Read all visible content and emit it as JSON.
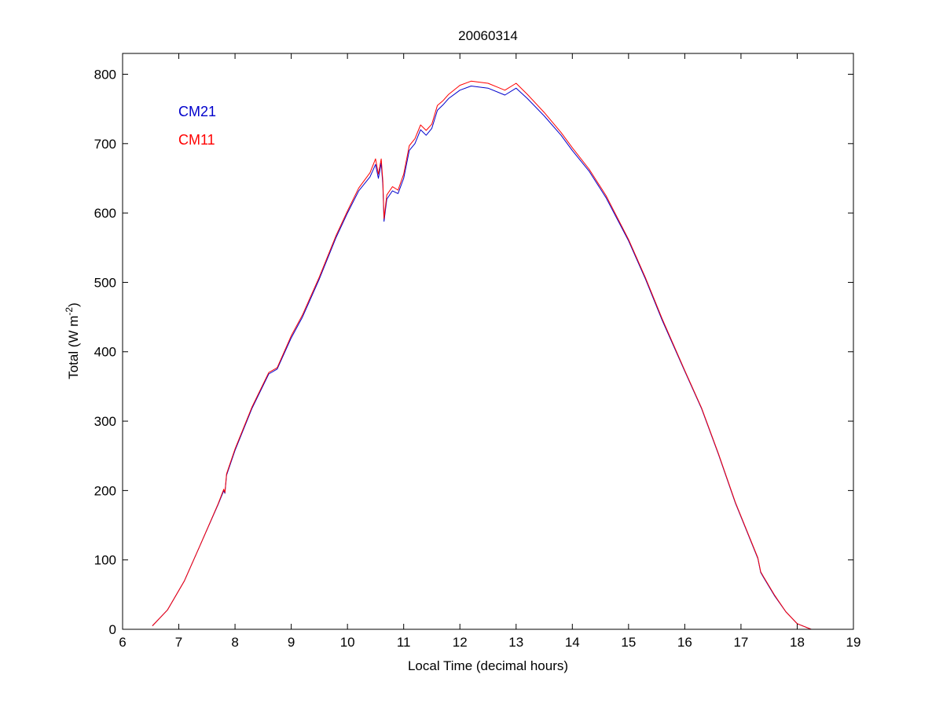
{
  "chart_data": {
    "type": "line",
    "title": "20060314",
    "xlabel": "Local Time (decimal hours)",
    "ylabel": {
      "prefix": "Total (W m",
      "superscript": "-2",
      "suffix": ")"
    },
    "xlim": [
      6,
      19
    ],
    "ylim": [
      0,
      830
    ],
    "xticks": [
      6,
      7,
      8,
      9,
      10,
      11,
      12,
      13,
      14,
      15,
      16,
      17,
      18,
      19
    ],
    "yticks": [
      0,
      100,
      200,
      300,
      400,
      500,
      600,
      700,
      800
    ],
    "grid": false,
    "legend_placement": "top-left",
    "series": [
      {
        "name": "CM21",
        "color": "#0000cc",
        "x": [
          6.53,
          6.8,
          7.1,
          7.4,
          7.7,
          7.8,
          7.82,
          7.85,
          8.0,
          8.3,
          8.6,
          8.75,
          9.0,
          9.2,
          9.5,
          9.8,
          10.0,
          10.2,
          10.4,
          10.5,
          10.55,
          10.6,
          10.63,
          10.65,
          10.7,
          10.8,
          10.9,
          11.0,
          11.1,
          11.2,
          11.3,
          11.4,
          11.5,
          11.6,
          11.7,
          11.8,
          12.0,
          12.2,
          12.5,
          12.8,
          13.0,
          13.2,
          13.5,
          13.8,
          14.0,
          14.3,
          14.6,
          15.0,
          15.3,
          15.6,
          16.0,
          16.3,
          16.6,
          16.9,
          17.1,
          17.3,
          17.35,
          17.4,
          17.6,
          17.8,
          18.0,
          18.25
        ],
        "y": [
          5,
          28,
          70,
          125,
          180,
          200,
          196,
          222,
          258,
          318,
          368,
          375,
          420,
          450,
          505,
          565,
          600,
          632,
          652,
          670,
          650,
          672,
          640,
          588,
          620,
          632,
          628,
          650,
          690,
          700,
          720,
          712,
          722,
          748,
          756,
          765,
          777,
          783,
          780,
          770,
          780,
          765,
          740,
          712,
          690,
          660,
          622,
          560,
          505,
          445,
          372,
          318,
          252,
          182,
          142,
          102,
          82,
          75,
          48,
          25,
          8,
          0
        ]
      },
      {
        "name": "CM11",
        "color": "#ff0000",
        "x": [
          6.53,
          6.8,
          7.1,
          7.4,
          7.7,
          7.8,
          7.82,
          7.85,
          8.0,
          8.3,
          8.6,
          8.75,
          9.0,
          9.2,
          9.5,
          9.8,
          10.0,
          10.2,
          10.4,
          10.5,
          10.55,
          10.6,
          10.63,
          10.65,
          10.7,
          10.8,
          10.9,
          11.0,
          11.1,
          11.2,
          11.3,
          11.4,
          11.5,
          11.6,
          11.7,
          11.8,
          12.0,
          12.2,
          12.5,
          12.8,
          13.0,
          13.2,
          13.5,
          13.8,
          14.0,
          14.3,
          14.6,
          15.0,
          15.3,
          15.6,
          16.0,
          16.3,
          16.6,
          16.9,
          17.1,
          17.3,
          17.35,
          17.4,
          17.6,
          17.8,
          18.0,
          18.25
        ],
        "y": [
          5,
          28,
          70,
          125,
          181,
          202,
          197,
          224,
          260,
          320,
          370,
          377,
          423,
          453,
          508,
          568,
          603,
          636,
          658,
          678,
          656,
          678,
          646,
          592,
          626,
          638,
          633,
          656,
          697,
          707,
          727,
          719,
          728,
          755,
          762,
          771,
          784,
          790,
          787,
          777,
          787,
          771,
          745,
          716,
          694,
          663,
          625,
          562,
          507,
          447,
          373,
          319,
          253,
          183,
          143,
          103,
          83,
          76,
          49,
          25,
          8,
          0
        ]
      }
    ]
  }
}
